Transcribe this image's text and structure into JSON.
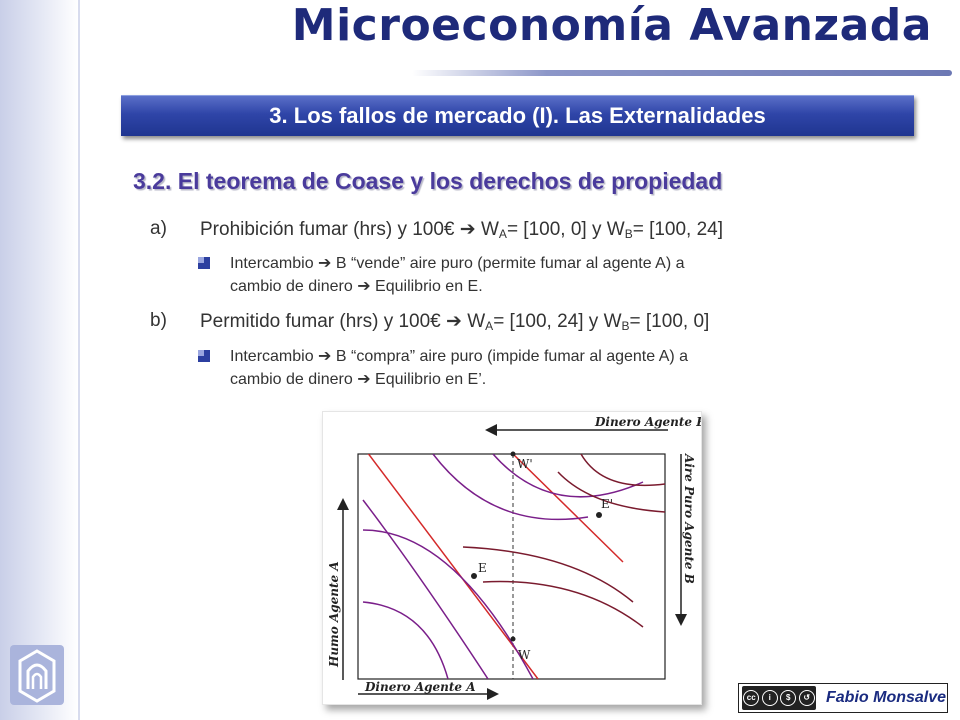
{
  "header": {
    "title": "Microeconomía Avanzada"
  },
  "section": {
    "title": "3. Los fallos de mercado (I). Las Externalidades"
  },
  "subsection": {
    "title": "3.2. El teorema de Coase y los derechos de propiedad"
  },
  "items": [
    {
      "letter": "a)",
      "text_pre": "Prohibición fumar (hrs) y 100€ ",
      "arrow": "➔",
      "w_a_label": " W",
      "w_a_sub": "A",
      "w_a_val": "= [100, 0] y W",
      "w_b_sub": "B",
      "w_b_val": "= [100, 24]",
      "bullet_line1_pre": "Intercambio ",
      "bullet_line1_post": " B “vende” aire puro (permite fumar al agente A) a",
      "bullet_line2_pre": "cambio de dinero ",
      "bullet_line2_post": " Equilibrio en E."
    },
    {
      "letter": "b)",
      "text_pre": "Permitido fumar (hrs) y 100€ ",
      "arrow": "➔",
      "w_a_label": " W",
      "w_a_sub": "A",
      "w_a_val": "= [100, 24] y W",
      "w_b_sub": "B",
      "w_b_val": "= [100, 0]",
      "bullet_line1_pre": "Intercambio ",
      "bullet_line1_post": " B “compra” aire puro (impide fumar al agente A) a",
      "bullet_line2_pre": "cambio de dinero ",
      "bullet_line2_post": " Equilibrio en E’."
    }
  ],
  "figure": {
    "top_axis_label": "Dinero Agente B",
    "right_axis_label": "Aire Puro Agente B",
    "left_axis_label": "Humo Agente A",
    "bottom_axis_label": "Dinero Agente A",
    "point_w_prime": "W'",
    "point_w": "W",
    "point_e": "E",
    "point_e_prime": "E'",
    "colors": {
      "agent_a_curves": "#7a1f8a",
      "agent_b_curves": "#7a1b2e",
      "budget_lines": "#d42a2a"
    }
  },
  "footer": {
    "cc_text": "BY NC SA",
    "author": "Fabio Monsalve"
  },
  "colors": {
    "accent": "#2f45a8",
    "title": "#1e2a7a",
    "subtitle": "#4a3b9c"
  }
}
